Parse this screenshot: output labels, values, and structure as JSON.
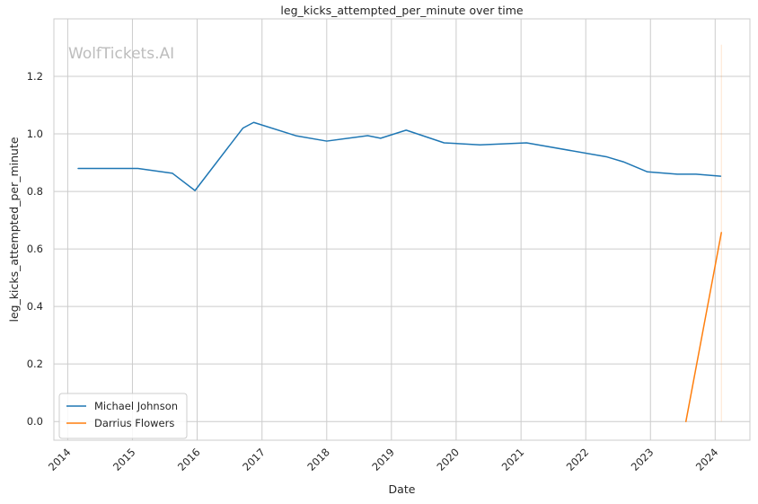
{
  "chart_data": {
    "type": "line",
    "title": "leg_kicks_attempted_per_minute over time",
    "xlabel": "Date",
    "ylabel": "leg_kicks_attempted_per_minute",
    "watermark": "WolfTickets.AI",
    "grid": true,
    "legend_position": "bottom-left",
    "x_axis": {
      "type": "date",
      "range": [
        "2013-10-15",
        "2024-07-15"
      ],
      "tick_labels": [
        "2014",
        "2015",
        "2016",
        "2017",
        "2018",
        "2019",
        "2020",
        "2021",
        "2022",
        "2023",
        "2024"
      ]
    },
    "y_axis": {
      "range": [
        -0.065,
        1.4
      ],
      "ticks": [
        0.0,
        0.2,
        0.4,
        0.6,
        0.8,
        1.0,
        1.2
      ],
      "tick_labels": [
        "0.0",
        "0.2",
        "0.4",
        "0.6",
        "0.8",
        "1.0",
        "1.2"
      ]
    },
    "series": [
      {
        "name": "Michael Johnson",
        "color": "#1f77b4",
        "points": [
          [
            "2014-03-01",
            0.88
          ],
          [
            "2014-08-01",
            0.88
          ],
          [
            "2015-02-01",
            0.88
          ],
          [
            "2015-08-15",
            0.863
          ],
          [
            "2015-12-20",
            0.803
          ],
          [
            "2016-09-15",
            1.02
          ],
          [
            "2016-11-15",
            1.04
          ],
          [
            "2017-07-15",
            0.993
          ],
          [
            "2018-01-01",
            0.975
          ],
          [
            "2018-08-20",
            0.994
          ],
          [
            "2018-11-01",
            0.985
          ],
          [
            "2019-03-25",
            1.013
          ],
          [
            "2019-10-25",
            0.969
          ],
          [
            "2020-05-15",
            0.962
          ],
          [
            "2021-02-01",
            0.969
          ],
          [
            "2022-05-01",
            0.92
          ],
          [
            "2022-08-01",
            0.903
          ],
          [
            "2022-12-15",
            0.868
          ],
          [
            "2023-06-01",
            0.86
          ],
          [
            "2023-09-15",
            0.86
          ],
          [
            "2024-02-01",
            0.853
          ]
        ]
      },
      {
        "name": "Darrius Flowers",
        "color": "#ff7f0e",
        "points": [
          [
            "2023-07-20",
            0.0
          ],
          [
            "2024-02-05",
            0.657
          ]
        ]
      }
    ],
    "extra_marks": [
      {
        "type": "vline",
        "x": "2024-02-05",
        "y_range": [
          0.0,
          1.31
        ],
        "color": "#ff7f0e",
        "opacity": 0.2
      }
    ]
  }
}
